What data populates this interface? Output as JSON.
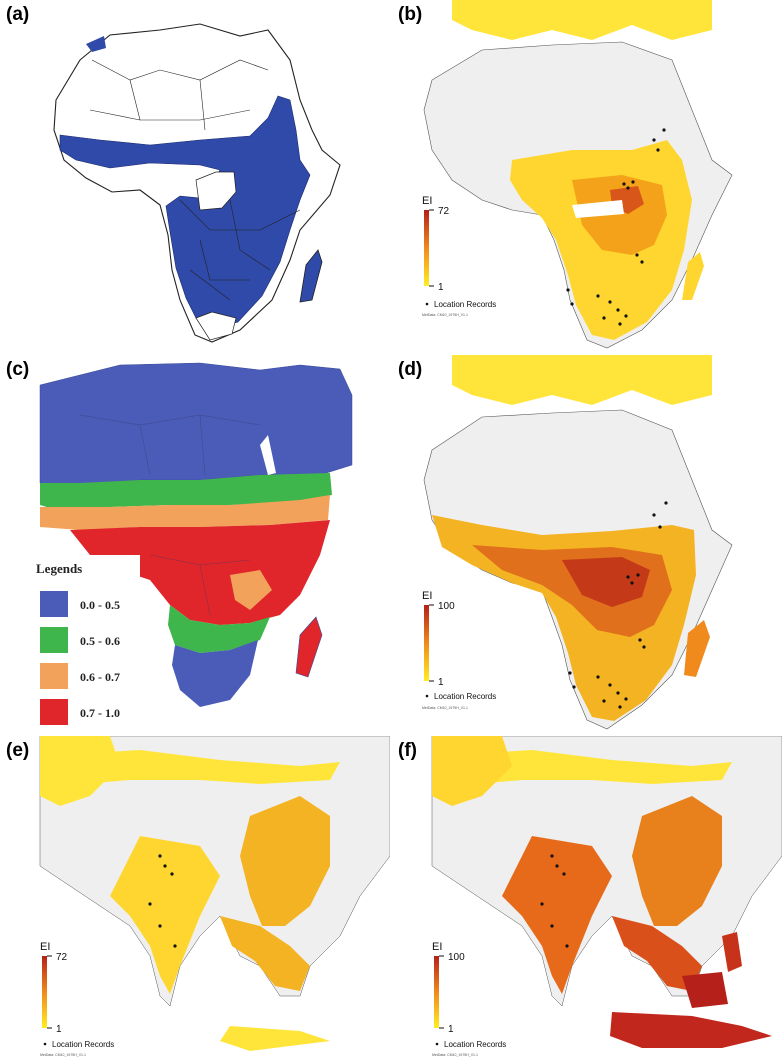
{
  "panels": {
    "a": {
      "label": "(a)"
    },
    "b": {
      "label": "(b)",
      "scale_title": "EI",
      "scale_max": "72",
      "scale_min": "1",
      "location_label": "Location Records",
      "meta": "MetData: CM10_1975H_V1.1"
    },
    "c": {
      "label": "(c)",
      "legend_title": "Legends",
      "legend_items": [
        {
          "range": "0.0 - 0.5",
          "color": "#4a5bb8"
        },
        {
          "range": "0.5 - 0.6",
          "color": "#3fb64b"
        },
        {
          "range": "0.6 - 0.7",
          "color": "#f2a25a"
        },
        {
          "range": "0.7 - 1.0",
          "color": "#e0252b"
        }
      ]
    },
    "d": {
      "label": "(d)",
      "scale_title": "EI",
      "scale_max": "100",
      "scale_min": "1",
      "location_label": "Location Records",
      "meta": "MetData: CM10_1975H_V1.1"
    },
    "e": {
      "label": "(e)",
      "scale_title": "EI",
      "scale_max": "72",
      "scale_min": "1",
      "location_label": "Location Records",
      "meta": "MetData: CM10_1975H_V1.1"
    },
    "f": {
      "label": "(f)",
      "scale_title": "EI",
      "scale_max": "100",
      "scale_min": "1",
      "location_label": "Location Records",
      "meta": "MetData: CM10_1975H_V1.1"
    }
  },
  "colors": {
    "presence_blue": "#2f4aa8",
    "land_grey": "#efefef",
    "ei_low": "#ffee22",
    "ei_mid": "#f7a21b",
    "ei_high": "#c1271d"
  }
}
